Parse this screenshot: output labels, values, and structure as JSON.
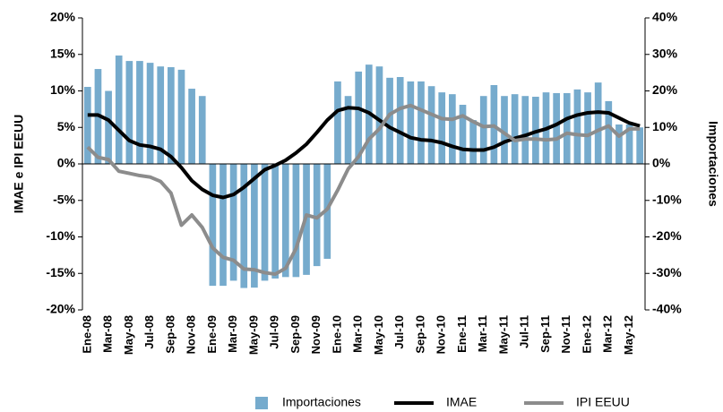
{
  "chart_data": {
    "type": "combo",
    "ylabel": "IMAE e IPI EEUU",
    "y2label": "Importaciones",
    "categories": [
      "Ene-08",
      null,
      "Mar-08",
      null,
      "May-08",
      null,
      "Jul-08",
      null,
      "Sep-08",
      null,
      "Nov-08",
      null,
      "Ene-09",
      null,
      "Mar-09",
      null,
      "May-09",
      null,
      "Jul-09",
      null,
      "Sep-09",
      null,
      "Nov-09",
      null,
      "Ene-10",
      null,
      "Mar-10",
      null,
      "May-10",
      null,
      "Jul-10",
      null,
      "Sep-10",
      null,
      "Nov-10",
      null,
      "Ene-11",
      null,
      "Mar-11",
      null,
      "May-11",
      null,
      "Jul-11",
      null,
      "Sep-11",
      null,
      "Nov-11",
      null,
      "Ene-12",
      null,
      "Mar-12",
      null,
      "May-12",
      null
    ],
    "ylim": [
      -20,
      20
    ],
    "yticks": [
      {
        "value": -20,
        "label": "-20%"
      },
      {
        "value": -15,
        "label": "-15%"
      },
      {
        "value": -10,
        "label": "-10%"
      },
      {
        "value": -5,
        "label": "-5%"
      },
      {
        "value": 0,
        "label": "0%"
      },
      {
        "value": 5,
        "label": "5%"
      },
      {
        "value": 10,
        "label": "10%"
      },
      {
        "value": 15,
        "label": "15%"
      },
      {
        "value": 20,
        "label": "20%"
      }
    ],
    "y2lim": [
      -40,
      40
    ],
    "y2ticks": [
      {
        "value": -40,
        "label": "-40%"
      },
      {
        "value": -30,
        "label": "-30%"
      },
      {
        "value": -20,
        "label": "-20%"
      },
      {
        "value": -10,
        "label": "-10%"
      },
      {
        "value": 0,
        "label": "0%"
      },
      {
        "value": 10,
        "label": "10%"
      },
      {
        "value": 20,
        "label": "20%"
      },
      {
        "value": 30,
        "label": "30%"
      },
      {
        "value": 40,
        "label": "40%"
      }
    ],
    "legend": "bottom",
    "series": [
      {
        "name": "Importaciones",
        "type": "bar",
        "axis": "y2",
        "color": "#76abcd",
        "values": [
          21.1,
          26,
          20,
          29.7,
          28.2,
          28.2,
          27.7,
          26.7,
          26.5,
          25.8,
          20.6,
          18.6,
          -33.4,
          -33.4,
          -32,
          -34,
          -33.9,
          -32,
          -31.4,
          -31,
          -31,
          -30.4,
          -28,
          -26,
          22.6,
          18.6,
          25.3,
          27.2,
          26.7,
          23.6,
          23.8,
          22.6,
          22.6,
          21.3,
          19.6,
          19.1,
          16.2,
          12,
          18.6,
          21.6,
          18.6,
          19.1,
          18.6,
          18.4,
          19.6,
          19.4,
          19.4,
          20.4,
          19.6,
          22.3,
          17.2,
          10.8,
          10.8,
          10
        ]
      },
      {
        "name": "IMAE",
        "type": "line",
        "color": "#000000",
        "values": [
          6.7,
          6.7,
          6,
          4.6,
          3.2,
          2.6,
          2.4,
          2,
          1,
          -0.5,
          -2.3,
          -3.5,
          -4.3,
          -4.6,
          -4.2,
          -3.2,
          -2,
          -0.8,
          -0.2,
          0.5,
          1.5,
          2.7,
          4.3,
          6,
          7.3,
          7.7,
          7.6,
          7,
          6,
          5,
          4.3,
          3.6,
          3.3,
          3.2,
          2.9,
          2.4,
          2,
          1.9,
          1.9,
          2.3,
          3,
          3.5,
          3.9,
          4.4,
          4.8,
          5.4,
          6.2,
          6.7,
          7,
          7.1,
          7,
          6.3,
          5.6,
          5.2
        ]
      },
      {
        "name": "IPI EEUU",
        "type": "line",
        "color": "#8c8c8c",
        "values": [
          2.3,
          0.9,
          0.6,
          -1,
          -1.3,
          -1.6,
          -1.8,
          -2.4,
          -4,
          -8.4,
          -7,
          -8.7,
          -11.5,
          -12.8,
          -13.2,
          -14.4,
          -14.5,
          -14.9,
          -15.1,
          -14.3,
          -11.6,
          -7,
          -7.4,
          -6.2,
          -3.6,
          -0.7,
          1,
          3.4,
          4.8,
          6.8,
          7.6,
          8,
          7.4,
          6.8,
          6.2,
          6.1,
          6.6,
          5.8,
          5.1,
          5.2,
          4.2,
          3.2,
          3.4,
          3.4,
          3.3,
          3.4,
          4.2,
          4,
          3.9,
          4.6,
          5.2,
          3.8,
          4.8,
          4.8
        ]
      }
    ]
  }
}
